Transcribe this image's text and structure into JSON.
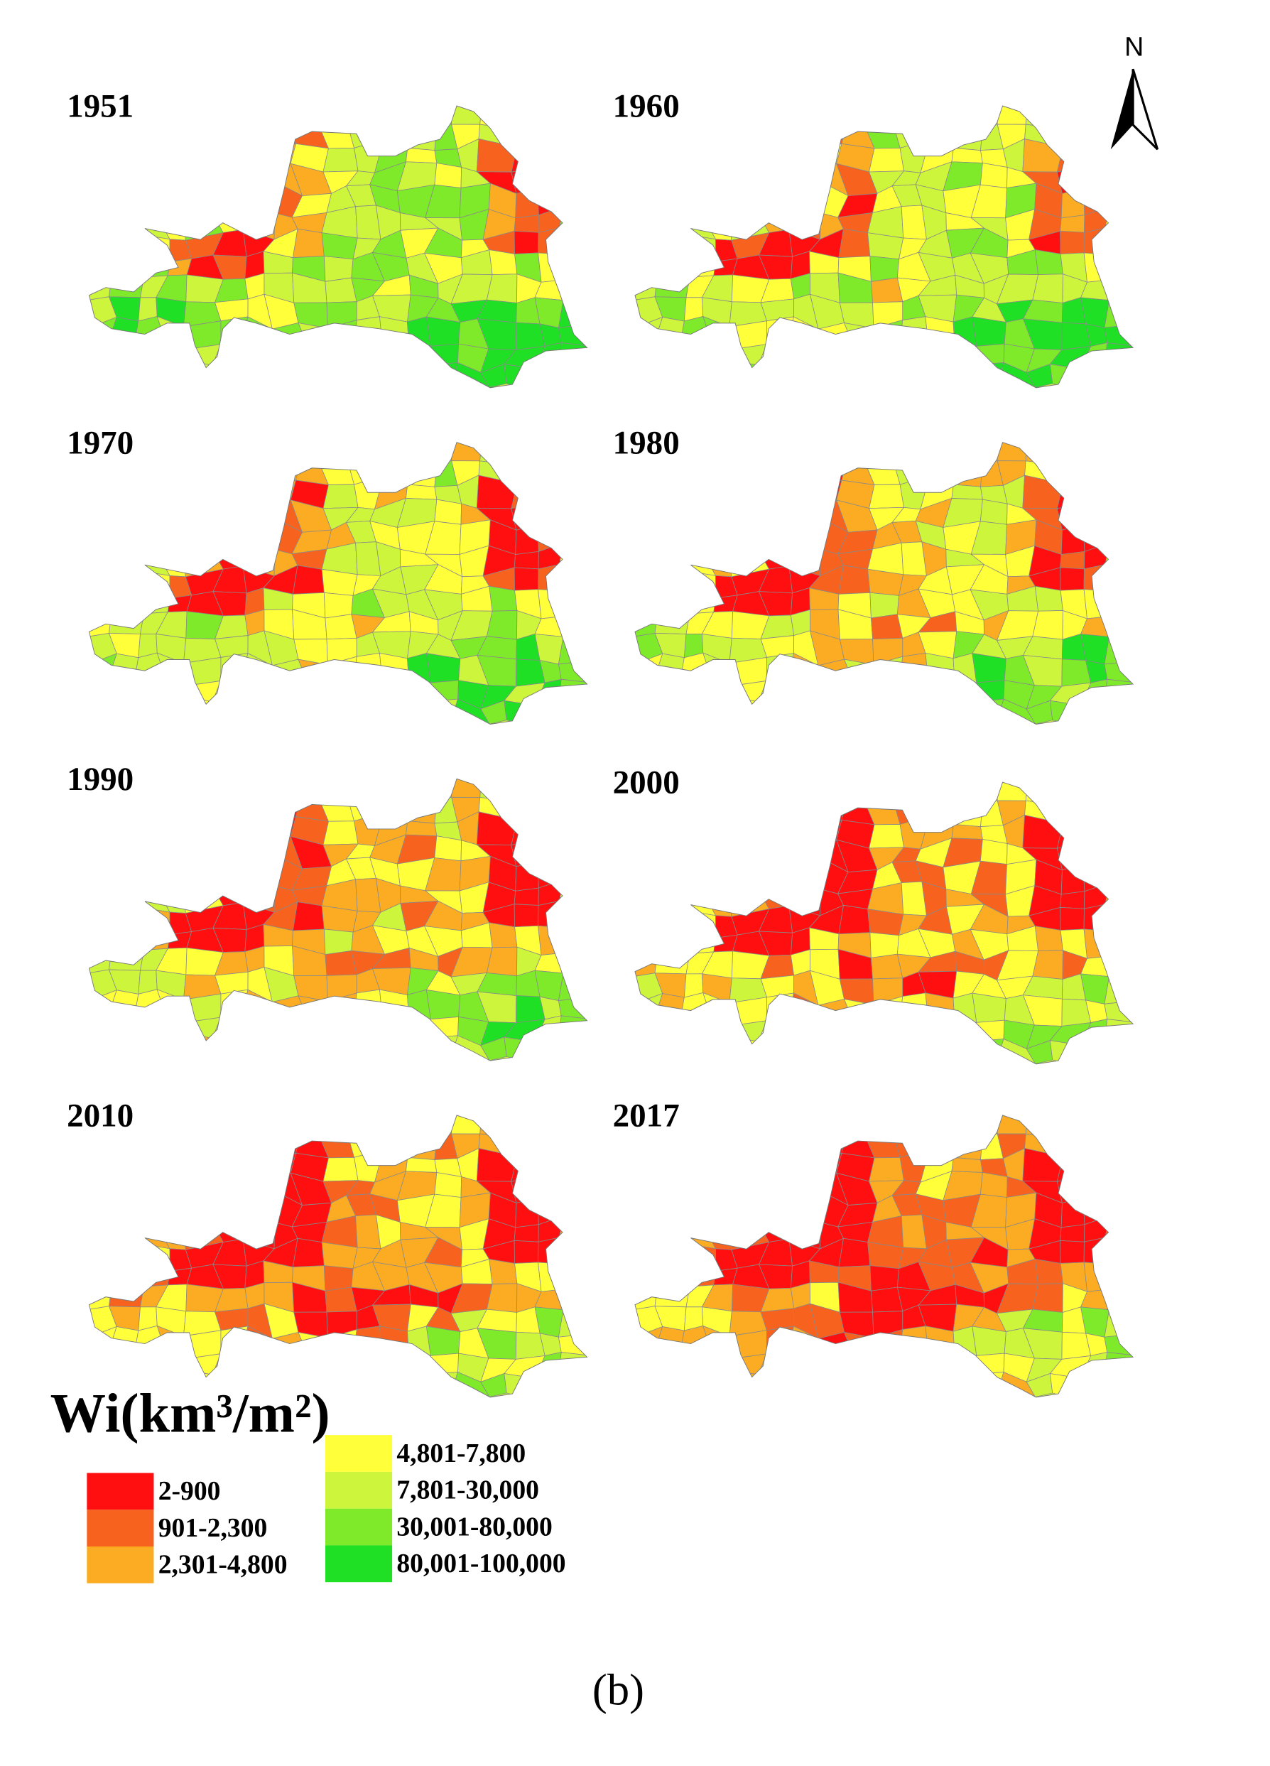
{
  "panels": [
    {
      "year": "1951"
    },
    {
      "year": "1960"
    },
    {
      "year": "1970"
    },
    {
      "year": "1980"
    },
    {
      "year": "1990"
    },
    {
      "year": "2000"
    },
    {
      "year": "2010"
    },
    {
      "year": "2017"
    }
  ],
  "legend": {
    "title": "Wi(km³/m²)",
    "items": [
      {
        "label": "2-900",
        "color": "#ff0f0f"
      },
      {
        "label": "901-2,300",
        "color": "#f7621e"
      },
      {
        "label": "2,301-4,800",
        "color": "#fbac22"
      },
      {
        "label": "4,801-7,800",
        "color": "#ffff3a"
      },
      {
        "label": "7,801-30,000",
        "color": "#cdf53c"
      },
      {
        "label": "30,001-80,000",
        "color": "#7eea2a"
      },
      {
        "label": "80,001-100,000",
        "color": "#1fe024"
      }
    ]
  },
  "north": "N",
  "caption": "(b)"
}
